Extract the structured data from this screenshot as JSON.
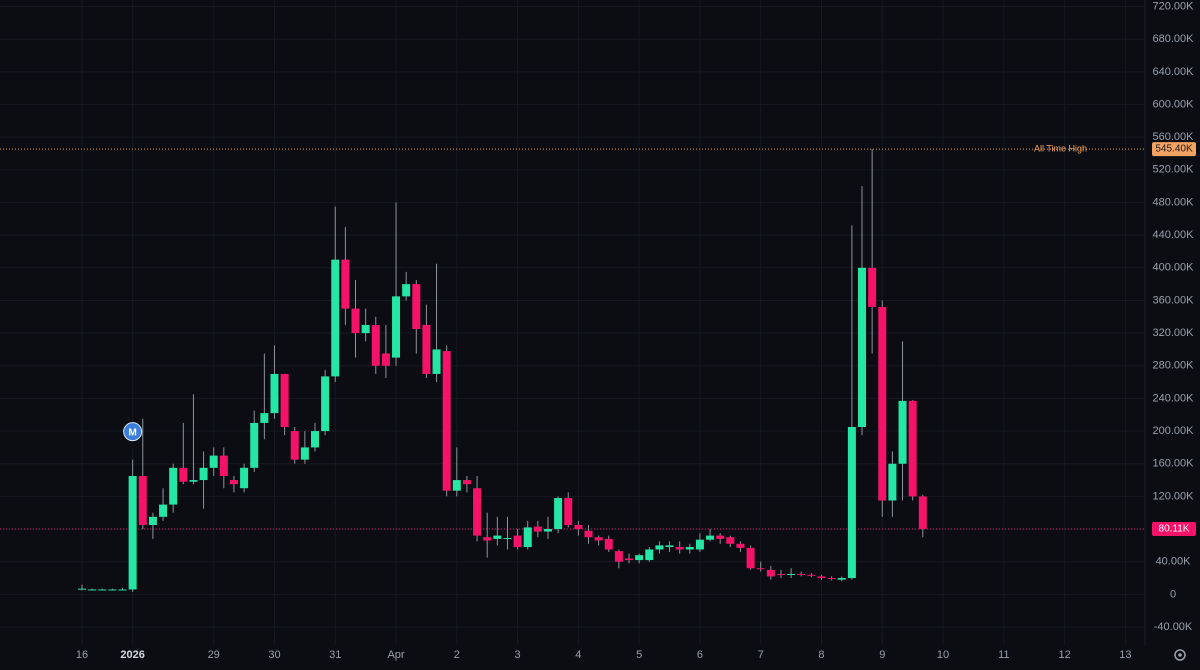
{
  "chart_data": {
    "type": "candlestick",
    "categories": [
      "16",
      null,
      null,
      null,
      null,
      "2026",
      null,
      null,
      null,
      null,
      null,
      null,
      null,
      "29",
      null,
      null,
      null,
      null,
      null,
      "30",
      null,
      null,
      null,
      null,
      null,
      "31",
      null,
      null,
      null,
      null,
      null,
      "Apr",
      null,
      null,
      null,
      null,
      null,
      "2",
      null,
      null,
      null,
      null,
      null,
      "3",
      null,
      null,
      null,
      null,
      null,
      "4",
      null,
      null,
      null,
      null,
      null,
      "5",
      null,
      null,
      null,
      null,
      null,
      "6",
      null,
      null,
      null,
      null,
      null,
      "7",
      null,
      null,
      null,
      null,
      null,
      "8",
      null,
      null,
      null,
      null,
      null,
      "9",
      null,
      null,
      null,
      null,
      null,
      "10",
      null,
      null,
      null,
      null,
      null,
      "11",
      null,
      null,
      null,
      null,
      null,
      "12",
      null,
      null,
      null,
      null,
      null,
      "13"
    ],
    "open": [
      6000,
      6000,
      6000,
      6000,
      6000,
      6000,
      145000,
      85000,
      95000,
      110000,
      155000,
      138000,
      140000,
      155000,
      170000,
      140000,
      130000,
      155000,
      210000,
      222000,
      270000,
      200000,
      165000,
      180000,
      200000,
      267000,
      410000,
      350000,
      320000,
      330000,
      295000,
      290000,
      365000,
      380000,
      330000,
      270000,
      298000,
      127000,
      140000,
      130000,
      70000,
      68000,
      68000,
      72000,
      58000,
      83000,
      77000,
      80000,
      118000,
      85000,
      78000,
      70000,
      68000,
      53000,
      44000,
      42000,
      42000,
      55000,
      58000,
      58000,
      55000,
      55000,
      67000,
      72000,
      70000,
      62000,
      57000,
      32000,
      30000,
      25000,
      24000,
      25000,
      24000,
      22000,
      20000,
      18000,
      20000,
      205000,
      400000,
      352000,
      115000,
      160000,
      237000,
      120000,
      null,
      null,
      null,
      null,
      null,
      null,
      null,
      null,
      null,
      null,
      null,
      null,
      null,
      null,
      null,
      null,
      null,
      null,
      null,
      null
    ],
    "high": [
      12000,
      7000,
      7000,
      7000,
      8000,
      165000,
      215000,
      100000,
      130000,
      160000,
      210000,
      245000,
      175000,
      180000,
      180000,
      145000,
      160000,
      225000,
      295000,
      305000,
      270000,
      205000,
      200000,
      210000,
      275000,
      475000,
      450000,
      385000,
      350000,
      340000,
      330000,
      480000,
      395000,
      385000,
      355000,
      405000,
      305000,
      180000,
      145000,
      145000,
      100000,
      95000,
      95000,
      80000,
      90000,
      90000,
      95000,
      120000,
      125000,
      90000,
      85000,
      72000,
      72000,
      55000,
      50000,
      50000,
      58000,
      65000,
      65000,
      65000,
      62000,
      75000,
      80000,
      75000,
      72000,
      65000,
      60000,
      40000,
      35000,
      30000,
      32000,
      28000,
      26000,
      24000,
      22000,
      22000,
      452000,
      500000,
      545400,
      360000,
      175000,
      310000,
      238000,
      122000,
      null,
      null,
      null,
      null,
      null,
      null,
      null,
      null,
      null,
      null,
      null,
      null,
      null,
      null,
      null,
      null,
      null,
      null,
      null,
      null
    ],
    "low": [
      5000,
      5000,
      5000,
      5000,
      5000,
      3000,
      80000,
      68000,
      90000,
      100000,
      135000,
      135000,
      105000,
      145000,
      130000,
      125000,
      125000,
      150000,
      190000,
      215000,
      195000,
      160000,
      160000,
      175000,
      195000,
      260000,
      330000,
      290000,
      310000,
      270000,
      265000,
      280000,
      360000,
      295000,
      265000,
      260000,
      120000,
      120000,
      125000,
      65000,
      45000,
      60000,
      55000,
      55000,
      55000,
      70000,
      68000,
      75000,
      82000,
      72000,
      62000,
      60000,
      52000,
      32000,
      38000,
      38000,
      40000,
      50000,
      52000,
      50000,
      50000,
      52000,
      65000,
      62000,
      58000,
      52000,
      30000,
      28000,
      18000,
      20000,
      20000,
      22000,
      21000,
      18000,
      17000,
      16000,
      18000,
      195000,
      295000,
      95000,
      95000,
      115000,
      115000,
      70000,
      null,
      null,
      null,
      null,
      null,
      null,
      null,
      null,
      null,
      null,
      null,
      null,
      null,
      null,
      null,
      null,
      null,
      null,
      null,
      null
    ],
    "close": [
      7000,
      6000,
      6000,
      6000,
      6000,
      145000,
      85000,
      95000,
      110000,
      155000,
      138000,
      140000,
      155000,
      170000,
      145000,
      135000,
      155000,
      210000,
      222000,
      270000,
      205000,
      165000,
      180000,
      200000,
      267000,
      410000,
      350000,
      320000,
      330000,
      280000,
      280000,
      365000,
      380000,
      325000,
      270000,
      300000,
      127000,
      140000,
      135000,
      72000,
      66000,
      72000,
      69000,
      58000,
      82000,
      77000,
      80000,
      118000,
      85000,
      80000,
      70000,
      66000,
      55000,
      40000,
      42000,
      48000,
      55000,
      60000,
      60000,
      55000,
      58000,
      67000,
      72000,
      68000,
      62000,
      57000,
      32000,
      31000,
      22000,
      24000,
      25000,
      24000,
      23000,
      20000,
      19000,
      20000,
      205000,
      400000,
      352000,
      115000,
      160000,
      237000,
      120000,
      80110,
      null,
      null,
      null,
      null,
      null,
      null,
      null,
      null,
      null,
      null,
      null,
      null,
      null,
      null,
      null,
      null,
      null,
      null,
      null,
      null
    ],
    "up_color": "#25e6a5",
    "down_color": "#f5136a",
    "ylim": [
      -62000,
      728000
    ],
    "yticks": [
      {
        "value": -40000,
        "label": "-40.00K"
      },
      0,
      {
        "value": 40000,
        "label": "40.00K"
      },
      {
        "value": 80000,
        "label": "80.00K"
      },
      {
        "value": 120000,
        "label": "120.00K"
      },
      {
        "value": 160000,
        "label": "160.00K"
      },
      {
        "value": 200000,
        "label": "200.00K"
      },
      {
        "value": 240000,
        "label": "240.00K"
      },
      {
        "value": 280000,
        "label": "280.00K"
      },
      {
        "value": 320000,
        "label": "320.00K"
      },
      {
        "value": 360000,
        "label": "360.00K"
      },
      {
        "value": 400000,
        "label": "400.00K"
      },
      {
        "value": 440000,
        "label": "440.00K"
      },
      {
        "value": 480000,
        "label": "480.00K"
      },
      {
        "value": 520000,
        "label": "520.00K"
      },
      {
        "value": 560000,
        "label": "560.00K"
      },
      {
        "value": 600000,
        "label": "600.00K"
      },
      {
        "value": 640000,
        "label": "640.00K"
      },
      {
        "value": 680000,
        "label": "680.00K"
      },
      {
        "value": 720000,
        "label": "720.00K"
      }
    ],
    "grid": true,
    "lines": [
      {
        "name": "All Time High",
        "value": 545400,
        "label": "545.40K",
        "color": "#f4a261"
      },
      {
        "value": 80110,
        "label": "80.11K",
        "color": "#f5136a"
      }
    ],
    "marker_text": "M"
  }
}
